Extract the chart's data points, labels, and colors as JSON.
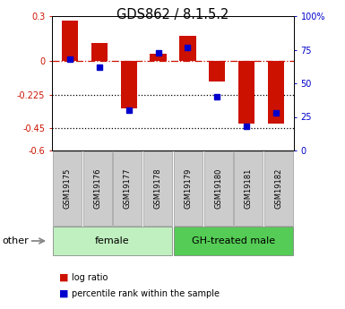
{
  "title": "GDS862 / 8.1.5.2",
  "samples": [
    "GSM19175",
    "GSM19176",
    "GSM19177",
    "GSM19178",
    "GSM19179",
    "GSM19180",
    "GSM19181",
    "GSM19182"
  ],
  "log_ratio": [
    0.27,
    0.12,
    -0.32,
    0.05,
    0.17,
    -0.14,
    -0.42,
    -0.42
  ],
  "percentile": [
    68,
    62,
    30,
    73,
    77,
    40,
    18,
    28
  ],
  "groups": [
    {
      "label": "female",
      "start": 0,
      "end": 4,
      "color": "#c0f0c0"
    },
    {
      "label": "GH-treated male",
      "start": 4,
      "end": 8,
      "color": "#55cc55"
    }
  ],
  "bar_color": "#CC1100",
  "dot_color": "#0000CC",
  "ylim_left": [
    -0.6,
    0.3
  ],
  "yticks_left": [
    0.3,
    0.0,
    -0.225,
    -0.45,
    -0.6
  ],
  "ytick_labels_left": [
    "0.3",
    "0",
    "-0.225",
    "-0.45",
    "-0.6"
  ],
  "ylim_right": [
    0,
    100
  ],
  "yticks_right": [
    100,
    75,
    50,
    25,
    0
  ],
  "ytick_labels_right": [
    "100%",
    "75",
    "50",
    "25",
    "0"
  ],
  "hline_zero_color": "#CC1100",
  "hline_dotted_vals": [
    -0.225,
    -0.45
  ],
  "background_color": "#ffffff",
  "tick_box_color": "#cccccc",
  "other_label": "other",
  "legend_bar": "log ratio",
  "legend_dot": "percentile rank within the sample"
}
